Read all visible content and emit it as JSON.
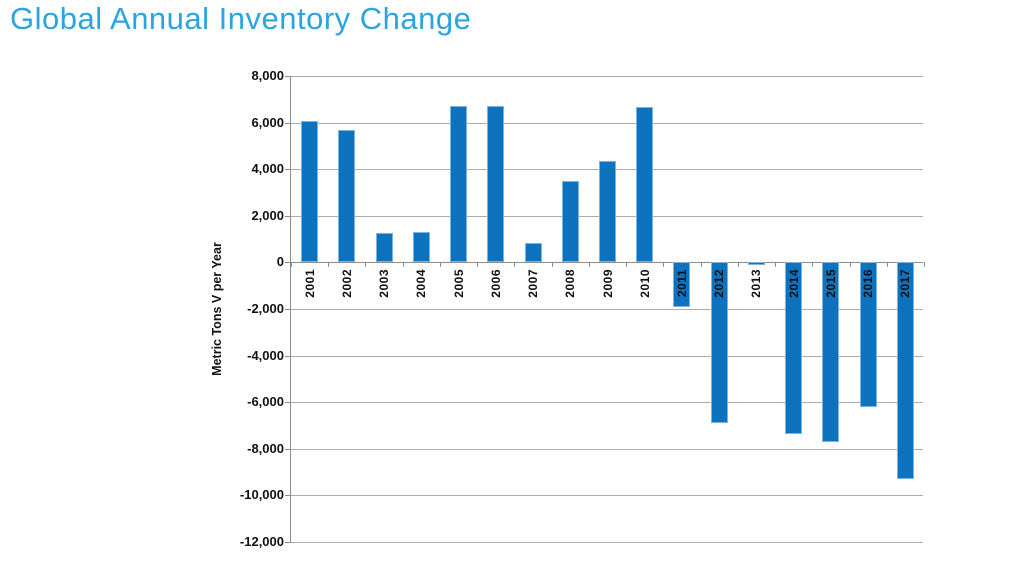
{
  "title": {
    "text": "Global Annual Inventory Change",
    "color": "#2BA5DF"
  },
  "chart_data": {
    "type": "bar",
    "title": "Global Annual Inventory Change",
    "categories": [
      "2001",
      "2002",
      "2003",
      "2004",
      "2005",
      "2006",
      "2007",
      "2008",
      "2009",
      "2010",
      "2011",
      "2012",
      "2013",
      "2014",
      "2015",
      "2016",
      "2017"
    ],
    "values": [
      6050,
      5700,
      1250,
      1300,
      6700,
      6700,
      850,
      3500,
      4350,
      6650,
      -1900,
      -6900,
      -100,
      -7350,
      -7700,
      -6200,
      -9300
    ],
    "xlabel": "",
    "ylabel": "Metric Tons V per Year",
    "ylim": [
      -12000,
      8000
    ],
    "ytick_step": 2000,
    "ytick_labels": [
      "8,000",
      "6,000",
      "4,000",
      "2,000",
      "0",
      "-2,000",
      "-4,000",
      "-6,000",
      "-8,000",
      "-10,000",
      "-12,000"
    ],
    "grid": true,
    "legend": false,
    "bar_color": "#0E73BE",
    "bar_border_color": "#7FB2DC",
    "gridline_color": "#ADADAD",
    "axis_color": "#8C8C8C",
    "tick_label_color": "#111111"
  }
}
